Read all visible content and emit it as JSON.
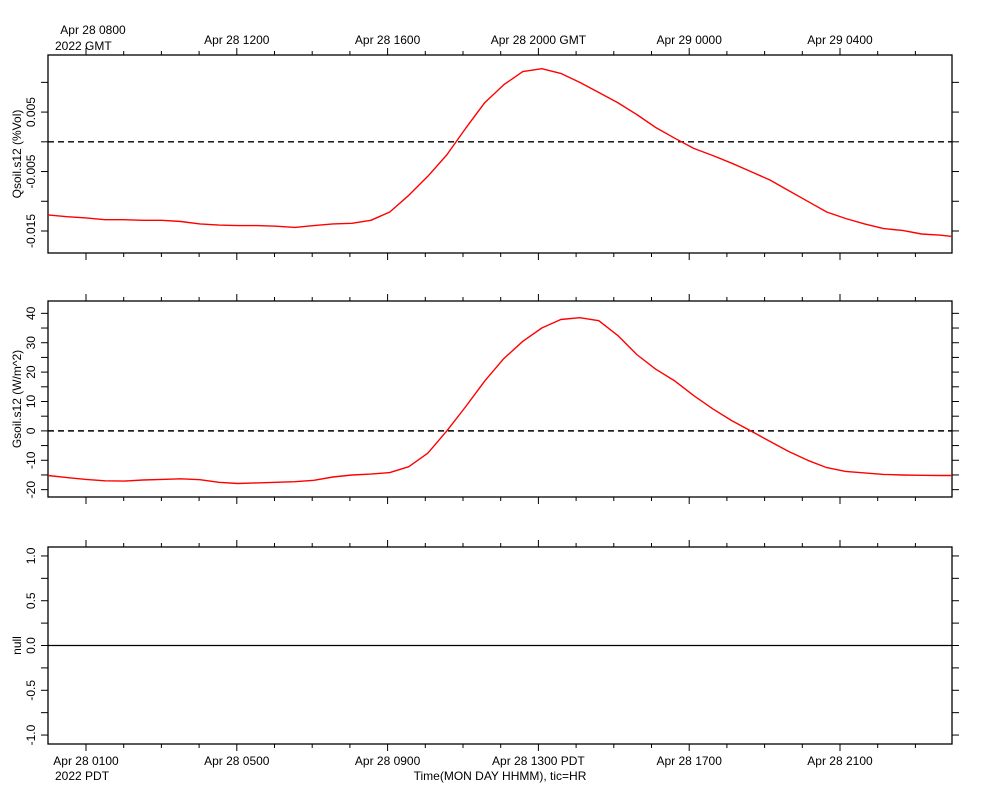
{
  "x_axis": {
    "gmt_first_label": "Apr 28 0800",
    "gmt_year_label": "2022 GMT",
    "gmt_tick_labels": [
      "Apr 28 1200",
      "Apr 28 1600",
      "Apr 28 2000 GMT",
      "Apr 29 0000",
      "Apr 29 0400"
    ],
    "pdt_tick_labels": [
      "Apr 28 0100",
      "Apr 28 0500",
      "Apr 28 0900",
      "Apr 28 1300 PDT",
      "Apr 28 1700",
      "Apr 28 2100"
    ],
    "pdt_year_label": "2022 PDT",
    "title": "Time(MON DAY HHMM), tic=HR"
  },
  "chart_data": [
    {
      "type": "line",
      "ylabel": "Qsoil.s12 (%Vol)",
      "xlim_hours_pdt": [
        0,
        23.8
      ],
      "ylim": [
        -0.0187,
        0.0146
      ],
      "yticks": [
        0.005,
        -0.005,
        -0.015
      ],
      "ytick_labels": [
        "0.005",
        "-0.005",
        "-0.015"
      ],
      "reference_line": 0,
      "line_color": "#ff0000",
      "series": [
        {
          "x": [
            0,
            0.5,
            1,
            1.5,
            2,
            2.5,
            3,
            3.5,
            4,
            4.5,
            5,
            5.5,
            6,
            6.5,
            7,
            7.5,
            8,
            8.5,
            9,
            9.5,
            10,
            10.5,
            11,
            11.5,
            12,
            12.5,
            13,
            13.5,
            14,
            14.5,
            15,
            15.5,
            16,
            16.5,
            17,
            17.5,
            18,
            18.5,
            19,
            19.5,
            20,
            20.5,
            21,
            21.5,
            22,
            22.5,
            23,
            23.5,
            23.8
          ],
          "values": [
            -0.0123,
            -0.0126,
            -0.0128,
            -0.0131,
            -0.0131,
            -0.0132,
            -0.0132,
            -0.0134,
            -0.0138,
            -0.014,
            -0.0141,
            -0.0141,
            -0.0142,
            -0.0144,
            -0.0141,
            -0.0138,
            -0.0137,
            -0.0132,
            -0.0118,
            -0.009,
            -0.0058,
            -0.0022,
            0.0023,
            0.0066,
            0.0096,
            0.0118,
            0.0123,
            0.0115,
            0.01,
            0.0083,
            0.0066,
            0.0046,
            0.0024,
            0.0006,
            -0.0011,
            -0.0023,
            -0.0036,
            -0.005,
            -0.0064,
            -0.0082,
            -0.01,
            -0.0118,
            -0.0129,
            -0.0138,
            -0.0146,
            -0.0149,
            -0.0155,
            -0.0157,
            -0.0159
          ]
        }
      ]
    },
    {
      "type": "line",
      "ylabel": "Gsoil.s12 (W/m^2)",
      "xlim_hours_pdt": [
        0,
        23.8
      ],
      "ylim": [
        -22.5,
        44.2
      ],
      "yticks": [
        40,
        30,
        20,
        10,
        0,
        -10,
        -20
      ],
      "ytick_labels": [
        "40",
        "30",
        "20",
        "10",
        "0",
        "-10",
        "-20"
      ],
      "reference_line": 0,
      "line_color": "#ff0000",
      "series": [
        {
          "x": [
            0,
            0.5,
            1,
            1.5,
            2,
            2.5,
            3,
            3.5,
            4,
            4.5,
            5,
            5.5,
            6,
            6.5,
            7,
            7.5,
            8,
            8.5,
            9,
            9.5,
            10,
            10.5,
            11,
            11.5,
            12,
            12.5,
            13,
            13.5,
            14,
            14.5,
            15,
            15.5,
            16,
            16.5,
            17,
            17.5,
            18,
            18.5,
            19,
            19.5,
            20,
            20.5,
            21,
            21.5,
            22,
            22.5,
            23,
            23.5,
            23.8
          ],
          "values": [
            -15.2,
            -15.9,
            -16.5,
            -17.0,
            -17.1,
            -16.7,
            -16.5,
            -16.3,
            -16.6,
            -17.5,
            -17.9,
            -17.7,
            -17.5,
            -17.3,
            -16.8,
            -15.7,
            -15.0,
            -14.7,
            -14.2,
            -12.2,
            -7.6,
            0.0,
            8.3,
            17.0,
            24.6,
            30.5,
            35.0,
            37.9,
            38.5,
            37.5,
            32.5,
            26.0,
            21.0,
            17.0,
            12.0,
            7.5,
            3.5,
            0.0,
            -3.5,
            -7.0,
            -10.0,
            -12.5,
            -13.8,
            -14.3,
            -14.8,
            -15.0,
            -15.1,
            -15.2,
            -15.2
          ]
        }
      ]
    },
    {
      "type": "line",
      "ylabel": "null",
      "xlim_hours_pdt": [
        0,
        23.8
      ],
      "ylim": [
        -1.1,
        1.1
      ],
      "yticks": [
        1.0,
        0.5,
        0.0,
        -0.5,
        -1.0
      ],
      "ytick_labels": [
        "1.0",
        "0.5",
        "0.0",
        "-0.5",
        "-1.0"
      ],
      "line_color": "#000000",
      "series": [
        {
          "x": [
            0,
            23.8
          ],
          "values": [
            0,
            0
          ]
        }
      ]
    }
  ]
}
